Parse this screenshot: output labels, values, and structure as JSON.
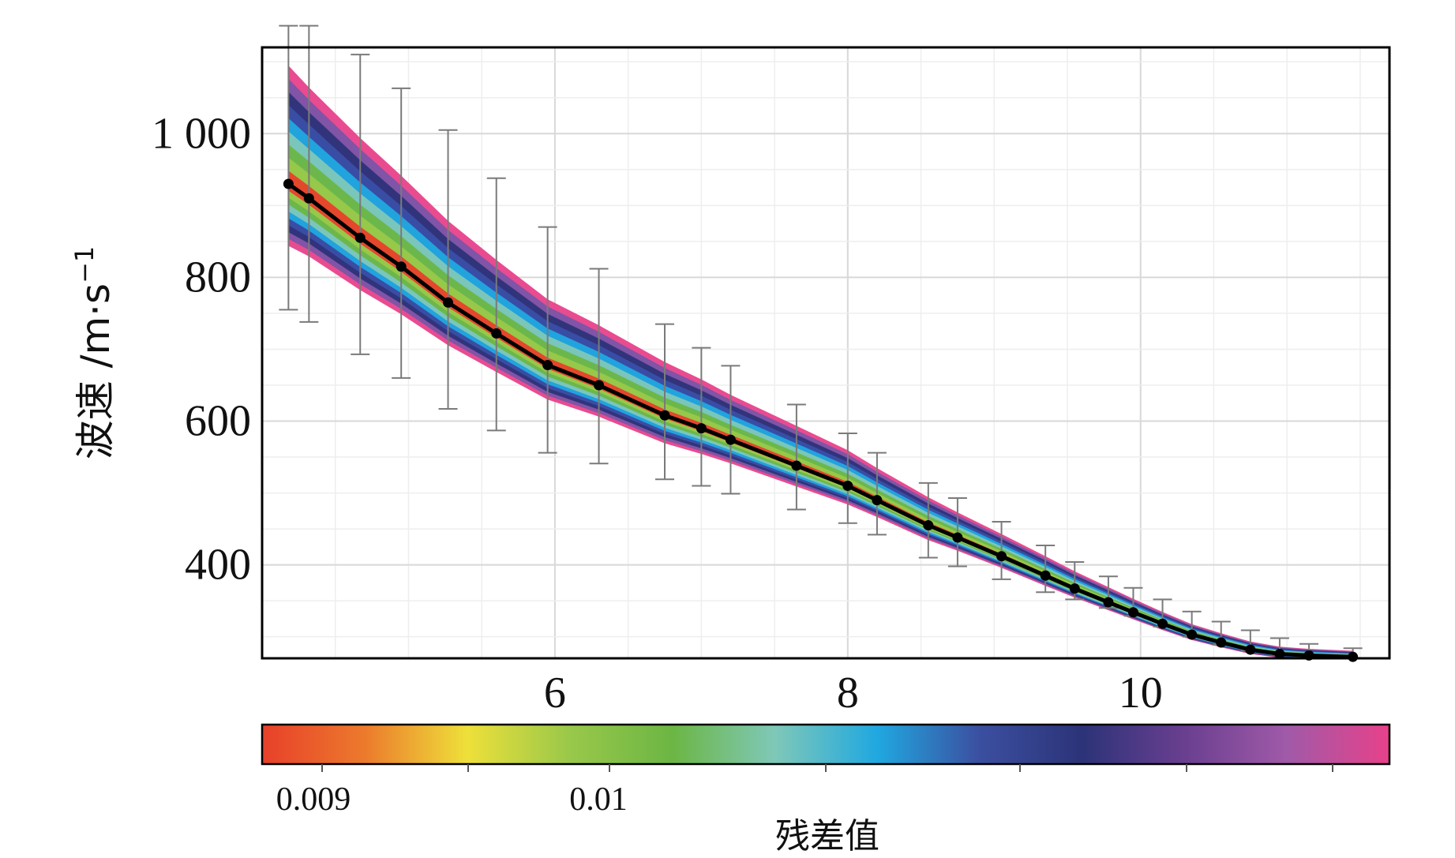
{
  "chart_data": {
    "type": "line",
    "xlabel": "",
    "ylabel": "波速 /m·s",
    "ylabel_superscript": "−1",
    "xlim": [
      4.0,
      11.7
    ],
    "ylim": [
      270,
      1120
    ],
    "x_ticks": [
      6,
      8,
      10
    ],
    "x_tick_labels": [
      "6",
      "8",
      "10"
    ],
    "y_ticks": [
      400,
      600,
      800,
      1000
    ],
    "y_tick_labels": [
      "400",
      "600",
      "800",
      "1 000"
    ],
    "grid": true,
    "series": [
      {
        "x": [
          4.18,
          4.32,
          4.67,
          4.95,
          5.27,
          5.6,
          5.95,
          6.3,
          6.75,
          7.0,
          7.2,
          7.65,
          8.0,
          8.2,
          8.55,
          8.75,
          9.05,
          9.35,
          9.55,
          9.78,
          9.95,
          10.15,
          10.35,
          10.55,
          10.75,
          10.95,
          11.15,
          11.45
        ],
        "y": [
          930,
          910,
          855,
          815,
          765,
          722,
          678,
          650,
          608,
          590,
          574,
          538,
          510,
          490,
          455,
          438,
          412,
          385,
          367,
          348,
          334,
          318,
          303,
          292,
          282,
          276,
          274,
          272
        ],
        "error_low": [
          755,
          738,
          693,
          660,
          617,
          587,
          556,
          541,
          519,
          510,
          499,
          477,
          458,
          442,
          410,
          398,
          380,
          362,
          352,
          340,
          329,
          314,
          300,
          289,
          281,
          275,
          272,
          270
        ],
        "error_high": [
          1150,
          1150,
          1110,
          1063,
          1005,
          938,
          870,
          812,
          735,
          702,
          677,
          623,
          583,
          556,
          514,
          493,
          460,
          427,
          404,
          384,
          368,
          352,
          335,
          321,
          309,
          298,
          290,
          284
        ]
      }
    ],
    "colorbar": {
      "title": "残差值",
      "tick_labels": [
        "0.009",
        "0.01"
      ],
      "colors": [
        "#e8402a",
        "#ec7a2c",
        "#eee03a",
        "#99c84a",
        "#6cb644",
        "#7fc8b8",
        "#20a8e0",
        "#3b4fa0",
        "#2c3378",
        "#6a3f90",
        "#a05aa8",
        "#e8418a"
      ]
    },
    "band_colors": [
      "#e8418a",
      "#7a54a8",
      "#2c3378",
      "#3a4fa8",
      "#20a8e0",
      "#7fc8b8",
      "#6cb644",
      "#99c84a",
      "#e8402a"
    ]
  }
}
